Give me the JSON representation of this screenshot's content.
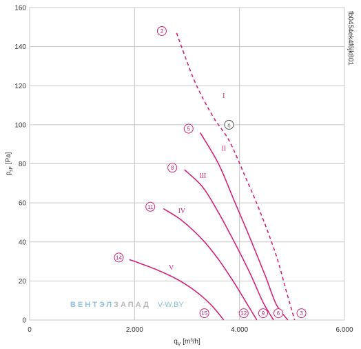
{
  "chart_data": {
    "type": "line",
    "xlabel": "q",
    "xlabel_sub": "V",
    "xlabel_unit": "[m³/h]",
    "ylabel": "p",
    "ylabel_sub": "sF",
    "ylabel_unit": "[Pa]",
    "xlim": [
      0,
      6000
    ],
    "ylim": [
      0,
      160
    ],
    "x_ticks": [
      0,
      2000,
      4000,
      6000
    ],
    "x_tick_labels": [
      "0",
      "2.000",
      "4.000",
      "6.000"
    ],
    "y_ticks": [
      0,
      20,
      40,
      60,
      80,
      100,
      120,
      140,
      160
    ],
    "y_tick_labels": [
      "0",
      "20",
      "40",
      "60",
      "80",
      "100",
      "120",
      "140",
      "160"
    ],
    "grid": true,
    "side_code": "fb0454ek4f6jk801",
    "color": "#d4237a",
    "series": [
      {
        "name": "I",
        "dashed": true,
        "points": [
          [
            2800,
            147
          ],
          [
            3150,
            122
          ],
          [
            3500,
            104
          ],
          [
            3800,
            92
          ],
          [
            4100,
            74
          ],
          [
            4400,
            55
          ],
          [
            4700,
            33
          ],
          [
            4900,
            14
          ],
          [
            5050,
            0
          ]
        ]
      },
      {
        "name": "II",
        "dashed": false,
        "points": [
          [
            3250,
            96
          ],
          [
            3600,
            80
          ],
          [
            3900,
            61
          ],
          [
            4200,
            42
          ],
          [
            4500,
            22
          ],
          [
            4700,
            8
          ],
          [
            4920,
            0
          ]
        ]
      },
      {
        "name": "III",
        "dashed": false,
        "points": [
          [
            2950,
            77
          ],
          [
            3300,
            68
          ],
          [
            3600,
            55
          ],
          [
            3900,
            40
          ],
          [
            4200,
            24
          ],
          [
            4450,
            9
          ],
          [
            4650,
            0
          ]
        ]
      },
      {
        "name": "IV",
        "dashed": false,
        "points": [
          [
            2550,
            57
          ],
          [
            2900,
            51
          ],
          [
            3300,
            41
          ],
          [
            3600,
            31
          ],
          [
            3900,
            19
          ],
          [
            4150,
            8
          ],
          [
            4330,
            0
          ]
        ]
      },
      {
        "name": "V",
        "dashed": false,
        "points": [
          [
            1900,
            31
          ],
          [
            2400,
            26
          ],
          [
            2800,
            21
          ],
          [
            3150,
            15
          ],
          [
            3450,
            8
          ],
          [
            3700,
            0
          ]
        ]
      }
    ],
    "series_labels": [
      {
        "text": "I",
        "x": 3700,
        "y": 115
      },
      {
        "text": "II",
        "x": 3700,
        "y": 88
      },
      {
        "text": "III",
        "x": 3300,
        "y": 74
      },
      {
        "text": "IV",
        "x": 2900,
        "y": 56
      },
      {
        "text": "V",
        "x": 2700,
        "y": 27
      }
    ],
    "annotations": [
      {
        "text": "2",
        "x": 2520,
        "y": 148
      },
      {
        "text": "5",
        "x": 3030,
        "y": 98
      },
      {
        "text": "8",
        "x": 2720,
        "y": 78
      },
      {
        "text": "11",
        "x": 2300,
        "y": 58
      },
      {
        "text": "14",
        "x": 1700,
        "y": 32
      },
      {
        "text": "15",
        "x": 3330,
        "y": 3.5
      },
      {
        "text": "12",
        "x": 4080,
        "y": 3.5
      },
      {
        "text": "9",
        "x": 4450,
        "y": 3.5
      },
      {
        "text": "6",
        "x": 4740,
        "y": 3.5
      },
      {
        "text": "3",
        "x": 5180,
        "y": 3.5
      },
      {
        "text": "η",
        "x": 3800,
        "y": 100,
        "grey": true
      }
    ]
  },
  "watermark": {
    "part1": "ВЕНТЭЛ",
    "part2": "ЗАПАД",
    "part3": "V-W.BY",
    "color1": "#8ec2dd",
    "color2": "#b8b8b8",
    "color3": "#8ec2dd"
  }
}
